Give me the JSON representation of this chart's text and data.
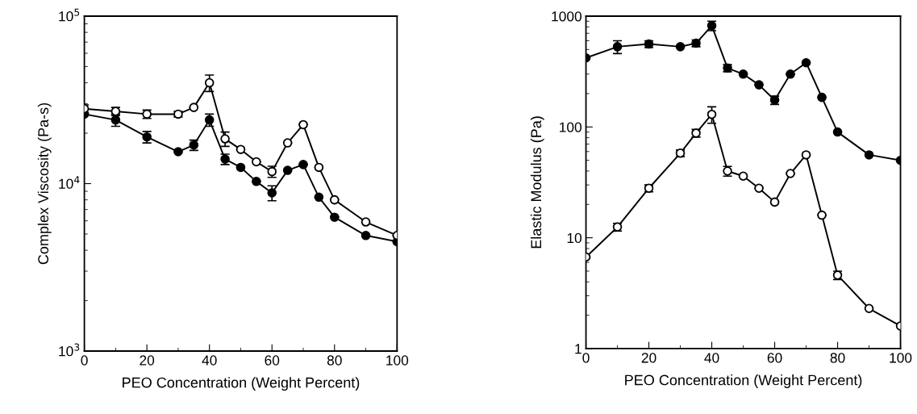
{
  "chart_data": [
    {
      "type": "line",
      "xlabel": "PEO Concentration (Weight Percent)",
      "ylabel": "Complex Viscosity (Pa-s)",
      "log": "y",
      "marker": "circle",
      "line_style": "solid",
      "grid": false,
      "legend": false,
      "x": [
        0,
        10,
        20,
        30,
        35,
        40,
        45,
        50,
        55,
        60,
        65,
        70,
        75,
        80,
        90,
        100
      ],
      "xlim": [
        0,
        100
      ],
      "xticks": [
        0,
        20,
        40,
        60,
        80,
        100
      ],
      "ylim": [
        1000,
        100000
      ],
      "yticks": [
        {
          "value": 1000,
          "label": "10$^{3}$"
        },
        {
          "value": 10000,
          "label": "10$^{4}$"
        },
        {
          "value": 100000,
          "label": "10$^{5}$"
        }
      ],
      "series": [
        {
          "color": "#000000",
          "values": [
            26000,
            24000,
            19000,
            15500,
            17000,
            24000,
            14000,
            12500,
            10300,
            8800,
            12000,
            13000,
            8300,
            6300,
            4900,
            4500
          ],
          "errors": [
            null,
            2000,
            1500,
            null,
            1200,
            2000,
            1000,
            null,
            null,
            900,
            null,
            null,
            null,
            null,
            null,
            null
          ]
        },
        {
          "color": "#000000",
          "values": [
            28000,
            27000,
            26000,
            26000,
            28500,
            40000,
            18500,
            16000,
            13500,
            11800,
            17500,
            22500,
            12500,
            8000,
            5900,
            4900
          ],
          "errors": [
            1500,
            1500,
            1500,
            1000,
            null,
            4500,
            1800,
            null,
            null,
            900,
            null,
            null,
            null,
            null,
            null,
            null
          ]
        }
      ]
    },
    {
      "type": "line",
      "xlabel": "PEO Concentration (Weight Percent)",
      "ylabel": "Elastic Modulus (Pa)",
      "log": "y",
      "marker": "circle",
      "line_style": "solid",
      "grid": false,
      "legend": false,
      "x": [
        0,
        10,
        20,
        30,
        35,
        40,
        45,
        50,
        55,
        60,
        65,
        70,
        75,
        80,
        90,
        100
      ],
      "xlim": [
        0,
        100
      ],
      "xticks": [
        0,
        20,
        40,
        60,
        80,
        100
      ],
      "ylim": [
        1,
        1000
      ],
      "yticks": [
        1,
        10,
        100,
        1000
      ],
      "series": [
        {
          "color": "#000000",
          "values": [
            420,
            530,
            560,
            530,
            570,
            820,
            340,
            300,
            240,
            175,
            300,
            380,
            185,
            90,
            56,
            50
          ],
          "errors": [
            null,
            70,
            40,
            null,
            40,
            80,
            25,
            null,
            null,
            15,
            null,
            null,
            null,
            null,
            null,
            null
          ]
        },
        {
          "color": "#000000",
          "values": [
            6.7,
            12.5,
            28,
            58,
            88,
            130,
            40,
            36,
            28,
            21,
            38,
            56,
            16,
            4.6,
            2.3,
            1.6
          ],
          "errors": [
            null,
            1,
            2,
            4,
            7,
            22,
            4,
            null,
            null,
            null,
            null,
            null,
            null,
            0.4,
            null,
            null
          ]
        }
      ]
    }
  ]
}
